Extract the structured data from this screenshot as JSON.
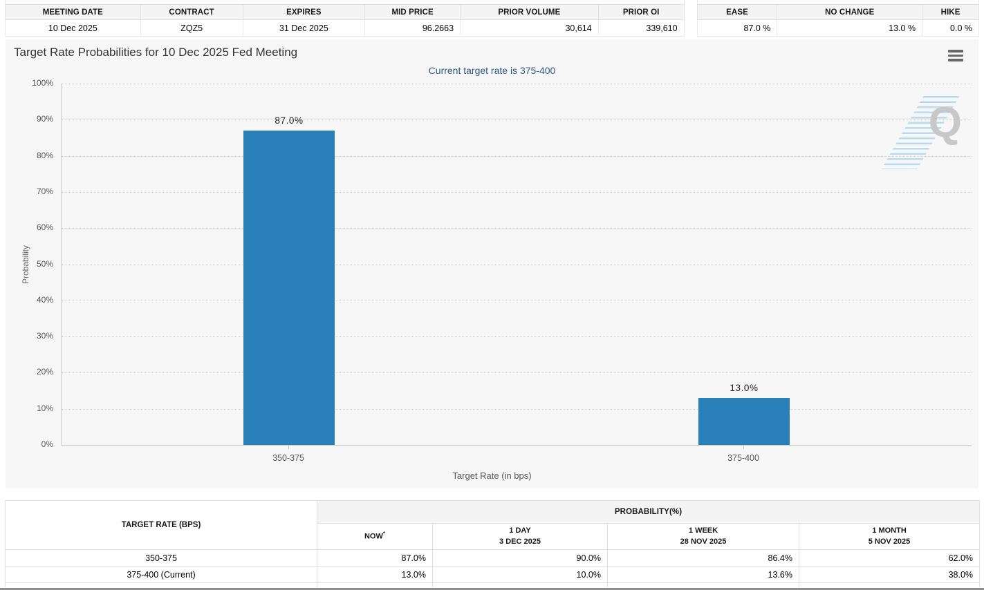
{
  "top_left_table": {
    "headers": [
      "MEETING DATE",
      "CONTRACT",
      "EXPIRES",
      "MID PRICE",
      "PRIOR VOLUME",
      "PRIOR OI"
    ],
    "values": [
      "10 Dec 2025",
      "ZQZ5",
      "31 Dec 2025",
      "96.2663",
      "30,614",
      "339,610"
    ]
  },
  "top_right_table": {
    "headers": [
      "EASE",
      "NO CHANGE",
      "HIKE"
    ],
    "values": [
      "87.0 %",
      "13.0 %",
      "0.0 %"
    ]
  },
  "chart": {
    "title": "Target Rate Probabilities for 10 Dec 2025 Fed Meeting",
    "subtitle": "Current target rate is 375-400",
    "menu_icon": "hamburger-menu",
    "watermark_letter": "Q"
  },
  "chart_data": {
    "type": "bar",
    "title": "Target Rate Probabilities for 10 Dec 2025 Fed Meeting",
    "subtitle": "Current target rate is 375-400",
    "categories": [
      "350-375",
      "375-400"
    ],
    "values": [
      87.0,
      13.0
    ],
    "value_labels": [
      "87.0%",
      "13.0%"
    ],
    "xlabel": "Target Rate (in bps)",
    "ylabel": "Probability",
    "ylim": [
      0,
      100
    ],
    "ytick_step": 10,
    "ytick_labels": [
      "0%",
      "10%",
      "20%",
      "30%",
      "40%",
      "50%",
      "60%",
      "70%",
      "80%",
      "90%",
      "100%"
    ],
    "bar_color": "#2980b9",
    "grid": "horizontal-dotted",
    "legend": "none"
  },
  "bottom_table": {
    "col1_header": "TARGET RATE (BPS)",
    "group_header": "PROBABILITY(%)",
    "now_note": "*",
    "sub_headers": [
      {
        "line1": "NOW",
        "line2": ""
      },
      {
        "line1": "1 DAY",
        "line2": "3 DEC 2025"
      },
      {
        "line1": "1 WEEK",
        "line2": "28 NOV 2025"
      },
      {
        "line1": "1 MONTH",
        "line2": "5 NOV 2025"
      }
    ],
    "rows": [
      {
        "target": "350-375",
        "now": "87.0%",
        "day": "90.0%",
        "week": "86.4%",
        "month": "62.0%"
      },
      {
        "target": "375-400 (Current)",
        "now": "13.0%",
        "day": "10.0%",
        "week": "13.6%",
        "month": "38.0%"
      }
    ]
  },
  "colors": {
    "bar_blue": "#2980b9",
    "now_highlight": "#f8f8d8",
    "subtitle_navy": "#2f5781",
    "panel_bg": "#f7f7f7",
    "header_bg": "#f4f4f4"
  }
}
